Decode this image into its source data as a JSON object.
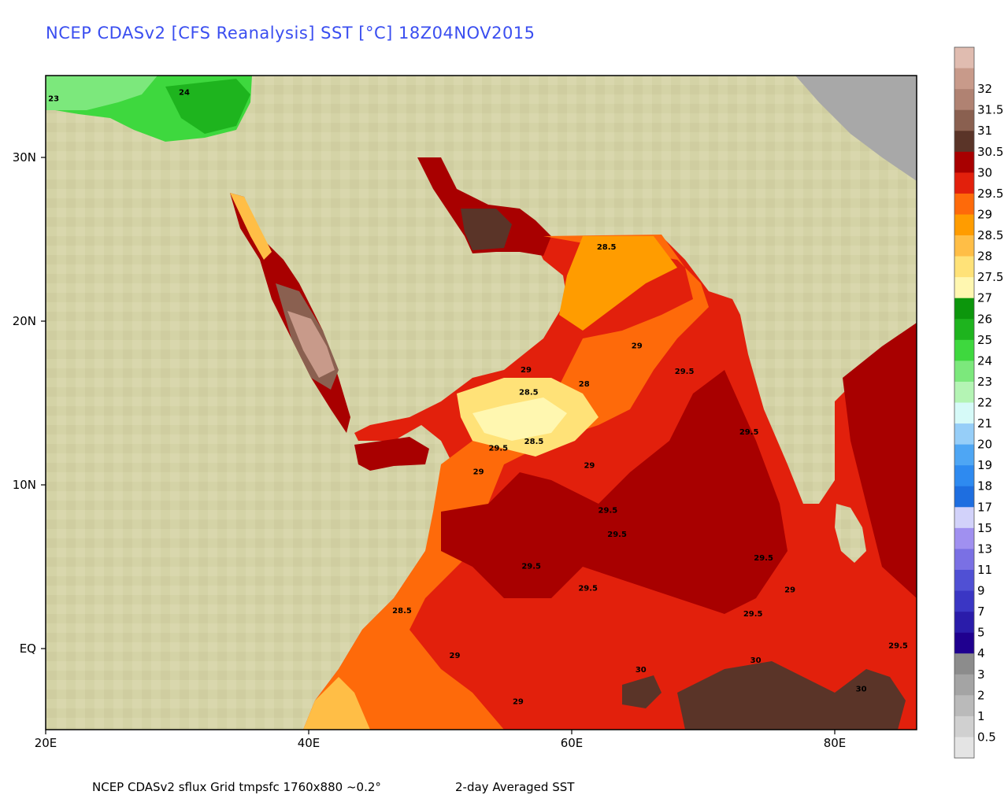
{
  "title": "NCEP CDASv2 [CFS Reanalysis] SST [°C] 18Z04NOV2015",
  "footer": {
    "source": "NCEP CDASv2 sflux Grid tmpsfc 1760x880 ~0.2°",
    "product": "2-day Averaged SST"
  },
  "map": {
    "lon_range": [
      20,
      86
    ],
    "lat_range": [
      -6,
      35
    ],
    "x_ticks": [
      {
        "value": 20,
        "label": "20E"
      },
      {
        "value": 40,
        "label": "40E"
      },
      {
        "value": 60,
        "label": "60E"
      },
      {
        "value": 80,
        "label": "80E"
      }
    ],
    "y_ticks": [
      {
        "value": 30,
        "label": "30N"
      },
      {
        "value": 20,
        "label": "20N"
      },
      {
        "value": 10,
        "label": "10N"
      },
      {
        "value": 0,
        "label": "EQ"
      }
    ],
    "contour_labels": [
      {
        "text": "23",
        "lon": 20.6,
        "lat": 33.4
      },
      {
        "text": "24",
        "lon": 30.5,
        "lat": 33.8
      },
      {
        "text": "28.5",
        "lon": 62.5,
        "lat": 24.1
      },
      {
        "text": "29",
        "lon": 64.8,
        "lat": 17.9
      },
      {
        "text": "29.5",
        "lon": 68.4,
        "lat": 16.3
      },
      {
        "text": "29",
        "lon": 56.4,
        "lat": 16.4
      },
      {
        "text": "28.5",
        "lon": 56.6,
        "lat": 15.0
      },
      {
        "text": "28",
        "lon": 60.8,
        "lat": 15.5
      },
      {
        "text": "29.5",
        "lon": 73.3,
        "lat": 12.5
      },
      {
        "text": "28.5",
        "lon": 57.0,
        "lat": 11.9
      },
      {
        "text": "29.5",
        "lon": 54.3,
        "lat": 11.5
      },
      {
        "text": "29",
        "lon": 52.8,
        "lat": 10.0
      },
      {
        "text": "29",
        "lon": 61.2,
        "lat": 10.4
      },
      {
        "text": "29.5",
        "lon": 62.6,
        "lat": 7.6
      },
      {
        "text": "29.5",
        "lon": 63.3,
        "lat": 6.1
      },
      {
        "text": "29.5",
        "lon": 56.8,
        "lat": 4.1
      },
      {
        "text": "29.5",
        "lon": 61.1,
        "lat": 2.7
      },
      {
        "text": "29.5",
        "lon": 74.4,
        "lat": 4.6
      },
      {
        "text": "29",
        "lon": 76.4,
        "lat": 2.6
      },
      {
        "text": "29.5",
        "lon": 73.6,
        "lat": 1.1
      },
      {
        "text": "28.5",
        "lon": 47.0,
        "lat": 1.3
      },
      {
        "text": "29",
        "lon": 51.0,
        "lat": -1.5
      },
      {
        "text": "30",
        "lon": 65.1,
        "lat": -2.4
      },
      {
        "text": "30",
        "lon": 73.8,
        "lat": -1.8
      },
      {
        "text": "29.5",
        "lon": 84.6,
        "lat": -0.9
      },
      {
        "text": "30",
        "lon": 81.8,
        "lat": -3.6
      },
      {
        "text": "29",
        "lon": 55.8,
        "lat": -4.4
      }
    ]
  },
  "colorbar": [
    {
      "label": "",
      "color": "#e4e4e4"
    },
    {
      "label": "0.5",
      "color": "#d0d0d0"
    },
    {
      "label": "1",
      "color": "#bababa"
    },
    {
      "label": "2",
      "color": "#a4a4a4"
    },
    {
      "label": "3",
      "color": "#8c8c8c"
    },
    {
      "label": "4",
      "color": "#1f008f"
    },
    {
      "label": "5",
      "color": "#2a1caa"
    },
    {
      "label": "7",
      "color": "#3a36c4"
    },
    {
      "label": "9",
      "color": "#5050d4"
    },
    {
      "label": "11",
      "color": "#7a70e4"
    },
    {
      "label": "13",
      "color": "#a090f0"
    },
    {
      "label": "15",
      "color": "#d2d2fa"
    },
    {
      "label": "17",
      "color": "#1e6ee0"
    },
    {
      "label": "18",
      "color": "#2e8af0"
    },
    {
      "label": "19",
      "color": "#4ea6f4"
    },
    {
      "label": "20",
      "color": "#96cef8"
    },
    {
      "label": "21",
      "color": "#d6faf8"
    },
    {
      "label": "22",
      "color": "#b4f4b4"
    },
    {
      "label": "23",
      "color": "#7ce87c"
    },
    {
      "label": "24",
      "color": "#3ed83e"
    },
    {
      "label": "25",
      "color": "#1eb41e"
    },
    {
      "label": "26",
      "color": "#0c960c"
    },
    {
      "label": "27",
      "color": "#fff7b0"
    },
    {
      "label": "27.5",
      "color": "#ffe278"
    },
    {
      "label": "28",
      "color": "#ffbe46"
    },
    {
      "label": "28.5",
      "color": "#ff9c00"
    },
    {
      "label": "29",
      "color": "#fe6a0a"
    },
    {
      "label": "29.5",
      "color": "#e2200c"
    },
    {
      "label": "30",
      "color": "#a80000"
    },
    {
      "label": "30.5",
      "color": "#5a3428"
    },
    {
      "label": "31",
      "color": "#8a6050"
    },
    {
      "label": "31.5",
      "color": "#b08272"
    },
    {
      "label": "32",
      "color": "#c89a8a"
    },
    {
      "label": "",
      "color": "#e0bcb0"
    }
  ]
}
